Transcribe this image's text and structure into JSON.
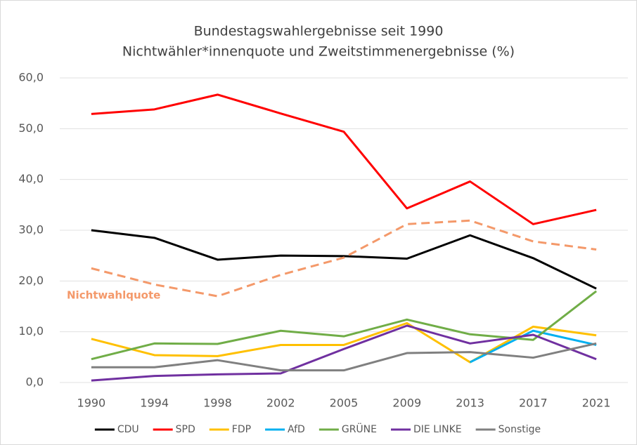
{
  "chart_data": {
    "type": "line",
    "title": "Bundestagswahlergebnisse seit 1990",
    "subtitle": "Nichtwähler*innenquote und Zweitstimmenergebnisse (%)",
    "categories": [
      "1990",
      "1994",
      "1998",
      "2002",
      "2005",
      "2009",
      "2013",
      "2017",
      "2021"
    ],
    "series": [
      {
        "name": "CDU",
        "color": "#000000",
        "values": [
          30.0,
          28.5,
          24.2,
          25.0,
          24.9,
          24.4,
          29.0,
          24.5,
          18.5
        ]
      },
      {
        "name": "SPD",
        "color": "#ff0000",
        "values": [
          52.9,
          53.8,
          56.7,
          53.0,
          49.4,
          34.3,
          39.6,
          31.2,
          34.0
        ]
      },
      {
        "name": "FDP",
        "color": "#ffc000",
        "values": [
          8.6,
          5.4,
          5.2,
          7.4,
          7.4,
          11.7,
          4.0,
          11.0,
          9.3
        ]
      },
      {
        "name": "AfD",
        "color": "#00b0f0",
        "values": [
          null,
          null,
          null,
          null,
          null,
          null,
          4.0,
          10.2,
          7.4
        ]
      },
      {
        "name": "GRÜNE",
        "color": "#70ad47",
        "values": [
          4.6,
          7.7,
          7.6,
          10.2,
          9.1,
          12.4,
          9.5,
          8.4,
          18.0
        ]
      },
      {
        "name": "DIE LINKE",
        "color": "#7030a0",
        "values": [
          0.4,
          1.3,
          1.6,
          1.8,
          6.6,
          11.2,
          7.7,
          9.4,
          4.6
        ]
      },
      {
        "name": "Sonstige",
        "color": "#808080",
        "values": [
          3.0,
          3.0,
          4.4,
          2.4,
          2.4,
          5.8,
          6.0,
          4.9,
          7.7
        ]
      },
      {
        "name": "Nichtwahlquote",
        "color": "#f4996a",
        "dashed": true,
        "legend": false,
        "values": [
          22.5,
          19.3,
          17.0,
          21.2,
          24.6,
          31.2,
          31.9,
          27.8,
          26.2
        ]
      }
    ],
    "ylim": [
      0,
      60
    ],
    "yticks": [
      {
        "value": 0,
        "label": "0,0"
      },
      {
        "value": 10,
        "label": "10,0"
      },
      {
        "value": 20,
        "label": "20,0"
      },
      {
        "value": 30,
        "label": "30,0"
      },
      {
        "value": 40,
        "label": "40,0"
      },
      {
        "value": 50,
        "label": "50,0"
      },
      {
        "value": 60,
        "label": "60,0"
      }
    ],
    "grid": true,
    "legend_position": "bottom"
  }
}
